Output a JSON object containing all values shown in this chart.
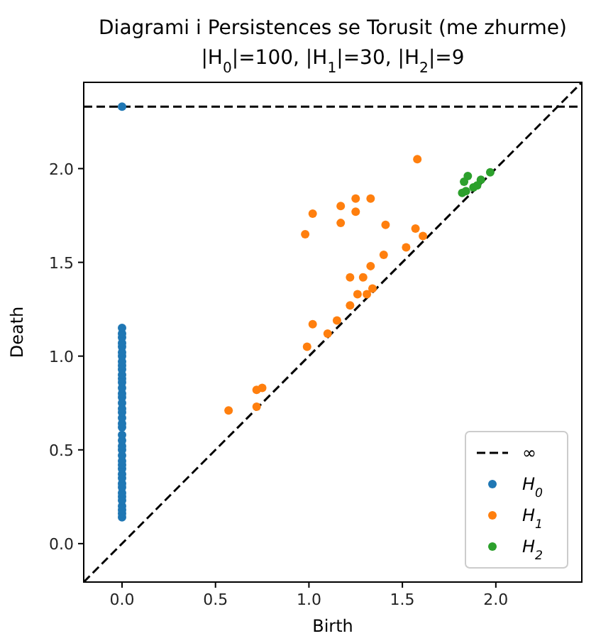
{
  "chart_data": {
    "type": "scatter",
    "title": "Diagrami i Persistences se Torusit (me zhurme)",
    "subtitle": "|H$_{0}$|=100, |H$_{1}$|=30, |H$_{2}$|=9",
    "xlabel": "Birth",
    "ylabel": "Death",
    "xlim": [
      -0.205,
      2.46
    ],
    "ylim": [
      -0.205,
      2.46
    ],
    "xticks": [
      {
        "value": 0,
        "label": "0.0"
      },
      {
        "value": 0.5,
        "label": "0.5"
      },
      {
        "value": 1,
        "label": "1.0"
      },
      {
        "value": 1.5,
        "label": "1.5"
      },
      {
        "value": 2,
        "label": "2.0"
      }
    ],
    "yticks": [
      {
        "value": 0,
        "label": "0.0"
      },
      {
        "value": 0.5,
        "label": "0.5"
      },
      {
        "value": 1,
        "label": "1.0"
      },
      {
        "value": 1.5,
        "label": "1.5"
      },
      {
        "value": 2,
        "label": "2.0"
      }
    ],
    "grid": false,
    "legend": "bottom right",
    "marker": "circle",
    "ref_lines": [
      {
        "axis": "y",
        "value": 2.33,
        "label": "∞",
        "color": "#000000",
        "line_style": "dashed"
      }
    ],
    "series": [
      {
        "type": "line",
        "color": "#000000",
        "line_style": "dashed",
        "marker": "none",
        "x": [
          -0.205,
          2.46
        ],
        "values": [
          -0.205,
          2.46
        ]
      },
      {
        "name": "H$_{0}$",
        "color": "#1f77b4",
        "x": [
          0,
          0,
          0,
          0,
          0,
          0,
          0,
          0,
          0,
          0,
          0,
          0,
          0,
          0,
          0,
          0,
          0,
          0,
          0,
          0,
          0,
          0,
          0,
          0,
          0,
          0,
          0,
          0,
          0,
          0,
          0,
          0,
          0,
          0,
          0,
          0,
          0,
          0,
          0,
          0,
          0,
          0
        ],
        "values": [
          2.33,
          0.14,
          0.16,
          0.18,
          0.2,
          0.23,
          0.25,
          0.27,
          0.3,
          0.32,
          0.35,
          0.37,
          0.4,
          0.42,
          0.44,
          0.47,
          0.5,
          0.52,
          0.55,
          0.58,
          0.62,
          0.64,
          0.67,
          0.7,
          0.72,
          0.75,
          0.78,
          0.8,
          0.83,
          0.86,
          0.88,
          0.9,
          0.93,
          0.95,
          0.97,
          1.0,
          1.02,
          1.05,
          1.07,
          1.1,
          1.12,
          1.15
        ]
      },
      {
        "name": "H$_{1}$",
        "color": "#ff7f0e",
        "x": [
          1.58,
          1.02,
          0.98,
          1.17,
          1.25,
          1.33,
          1.25,
          1.17,
          1.41,
          1.57,
          1.61,
          1.52,
          1.4,
          1.33,
          1.22,
          1.29,
          1.26,
          1.31,
          1.34,
          1.22,
          1.15,
          1.1,
          1.02,
          0.99,
          0.72,
          0.75,
          0.72,
          0.57
        ],
        "values": [
          2.05,
          1.76,
          1.65,
          1.8,
          1.84,
          1.84,
          1.77,
          1.71,
          1.7,
          1.68,
          1.64,
          1.58,
          1.54,
          1.48,
          1.42,
          1.42,
          1.33,
          1.33,
          1.36,
          1.27,
          1.19,
          1.12,
          1.17,
          1.05,
          0.82,
          0.83,
          0.73,
          0.71
        ]
      },
      {
        "name": "H$_{2}$",
        "color": "#2ca02c",
        "x": [
          1.82,
          1.83,
          1.85,
          1.88,
          1.92,
          1.97,
          1.84,
          1.9
        ],
        "values": [
          1.87,
          1.93,
          1.96,
          1.9,
          1.94,
          1.98,
          1.88,
          1.91
        ]
      }
    ]
  }
}
